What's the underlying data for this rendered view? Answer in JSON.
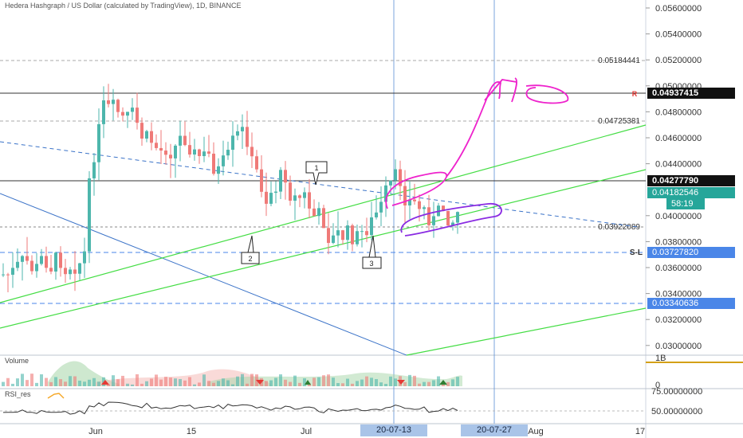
{
  "title": "Hedera Hashgraph / US Dollar (calculated by TradingView), 1D, BINANCE",
  "price_axis": {
    "labels": [
      "0.05600000",
      "0.05400000",
      "0.05200000",
      "0.05000000",
      "0.04800000",
      "0.04600000",
      "0.04400000",
      "0.04000000",
      "0.03800000",
      "0.03600000",
      "0.03400000",
      "0.03200000",
      "0.03000000"
    ]
  },
  "levels": {
    "upper_dashed": "0.05184441",
    "mid_dashed": "0.04725381",
    "low_dashed": "0.03922089"
  },
  "price_tags": {
    "target": "0.04937415",
    "target_marker": "R",
    "resistance": "0.04277790",
    "current": "0.04182546",
    "countdown": "58:19",
    "stop": "0.03727820",
    "stop_label": "S-L",
    "support": "0.03340636"
  },
  "time_axis": {
    "labels": [
      "Jun",
      "15",
      "Jul",
      "Aug",
      "17"
    ],
    "highlight_1": "20-07-13",
    "highlight_2": "20-07-27"
  },
  "annotations": {
    "callout_1": "1",
    "callout_2": "2",
    "callout_3": "3"
  },
  "volume_pane": {
    "label": "Volume",
    "axis_top": "1B",
    "axis_bottom": "0"
  },
  "rsi_pane": {
    "label": "RSI_res",
    "axis_top": "75.00000000",
    "axis_mid": "50.00000000"
  },
  "colors": {
    "up": "#4db6ac",
    "down": "#ef7a78",
    "trend_green": "#44dd44",
    "trend_blue": "#3b73c8",
    "drawing_magenta": "#ee22cc",
    "drawing_purple": "#8a2be2",
    "tag_blue": "#4a86e8"
  }
}
